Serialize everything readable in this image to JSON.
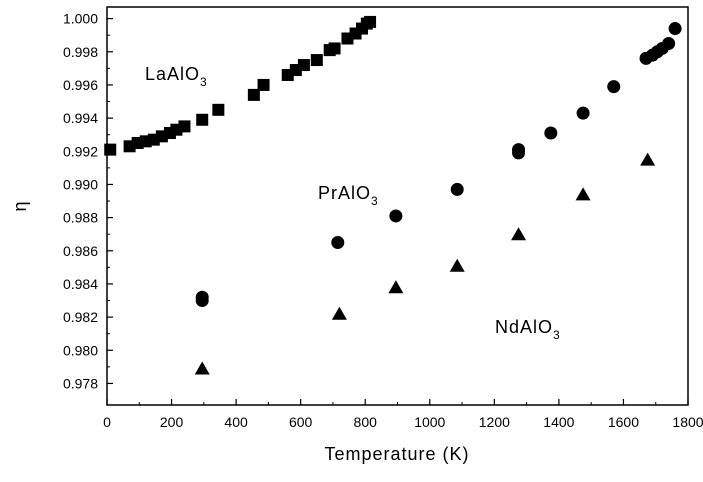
{
  "chart_data": {
    "type": "scatter",
    "xlabel": "Temperature (K)",
    "ylabel": "η",
    "xlim": [
      0,
      1800
    ],
    "ylim": [
      0.9767,
      1.0007
    ],
    "xticks": [
      0,
      200,
      400,
      600,
      800,
      1000,
      1200,
      1400,
      1600,
      1800
    ],
    "yticks": [
      0.978,
      0.98,
      0.982,
      0.984,
      0.986,
      0.988,
      0.99,
      0.992,
      0.994,
      0.996,
      0.998,
      1.0
    ],
    "ytick_labels": [
      "0.978",
      "0.980",
      "0.982",
      "0.984",
      "0.986",
      "0.988",
      "0.990",
      "0.992",
      "0.994",
      "0.996",
      "0.998",
      "1.000"
    ],
    "grid": false,
    "series": [
      {
        "name": "LaAlO3",
        "label_main": "LaAlO",
        "label_sub": "3",
        "marker": "square",
        "color": "#000000",
        "x": [
          10,
          70,
          95,
          120,
          145,
          170,
          195,
          215,
          240,
          295,
          345,
          455,
          485,
          560,
          585,
          610,
          650,
          690,
          705,
          745,
          770,
          790,
          805,
          815
        ],
        "y": [
          0.9921,
          0.9923,
          0.9925,
          0.9926,
          0.9927,
          0.9929,
          0.9931,
          0.9933,
          0.9935,
          0.9939,
          0.9945,
          0.9954,
          0.996,
          0.9966,
          0.9969,
          0.9972,
          0.9975,
          0.9981,
          0.9982,
          0.9988,
          0.9991,
          0.9994,
          0.9997,
          0.9998
        ]
      },
      {
        "name": "PrAlO3",
        "label_main": "PrAlO",
        "label_sub": "3",
        "marker": "circle",
        "color": "#000000",
        "x": [
          295,
          295,
          715,
          895,
          1085,
          1275,
          1275,
          1375,
          1475,
          1570,
          1670,
          1690,
          1705,
          1720,
          1740,
          1760
        ],
        "y": [
          0.983,
          0.9832,
          0.9865,
          0.9881,
          0.9897,
          0.9919,
          0.9921,
          0.9931,
          0.9943,
          0.9959,
          0.9976,
          0.9978,
          0.998,
          0.9982,
          0.9985,
          0.9994
        ]
      },
      {
        "name": "NdAlO3",
        "label_main": "NdAlO",
        "label_sub": "3",
        "marker": "triangle",
        "color": "#000000",
        "x": [
          295,
          720,
          895,
          1085,
          1275,
          1475,
          1675
        ],
        "y": [
          0.9789,
          0.9822,
          0.9838,
          0.9851,
          0.987,
          0.9894,
          0.9915
        ]
      }
    ]
  }
}
